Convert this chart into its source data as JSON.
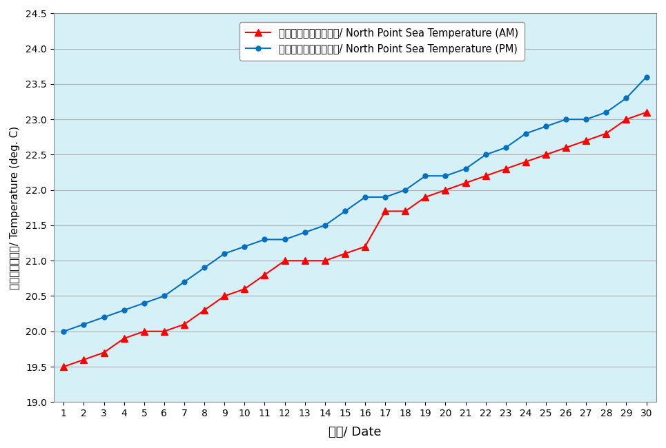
{
  "days": [
    1,
    2,
    3,
    4,
    5,
    6,
    7,
    8,
    9,
    10,
    11,
    12,
    13,
    14,
    15,
    16,
    17,
    18,
    19,
    20,
    21,
    22,
    23,
    24,
    25,
    26,
    27,
    28,
    29,
    30
  ],
  "am_temps": [
    19.5,
    19.6,
    19.7,
    19.9,
    20.0,
    20.0,
    20.1,
    20.3,
    20.5,
    20.6,
    20.8,
    21.0,
    21.0,
    21.0,
    21.1,
    21.2,
    21.7,
    21.7,
    21.9,
    22.0,
    22.1,
    22.2,
    22.3,
    22.4,
    22.5,
    22.6,
    22.7,
    22.8,
    23.0,
    23.1
  ],
  "pm_temps": [
    20.0,
    20.1,
    20.2,
    20.3,
    20.4,
    20.5,
    20.7,
    20.9,
    21.1,
    21.2,
    21.3,
    21.3,
    21.4,
    21.5,
    21.7,
    21.9,
    21.9,
    22.0,
    22.2,
    22.2,
    22.3,
    22.5,
    22.6,
    22.8,
    22.9,
    23.0,
    23.0,
    23.1,
    23.3,
    23.6
  ],
  "ylim": [
    19.0,
    24.5
  ],
  "yticks": [
    19.0,
    19.5,
    20.0,
    20.5,
    21.0,
    21.5,
    22.0,
    22.5,
    23.0,
    23.5,
    24.0,
    24.5
  ],
  "am_color": "#FF0000",
  "pm_color": "#0070C0",
  "am_label": "北角海水溫度（上午）/ North Point Sea Temperature (AM)",
  "pm_label": "北角海水溫度（下午）/ North Point Sea Temperature (PM)",
  "xlabel": "日期/ Date",
  "ylabel": "溫度（攝氏度）/ Temperature (deg. C)",
  "plot_bg_color": "#d6f0f8",
  "outer_bg_color": "#ffffff",
  "grid_color": "#b0b0b0",
  "label_fontsize": 12
}
